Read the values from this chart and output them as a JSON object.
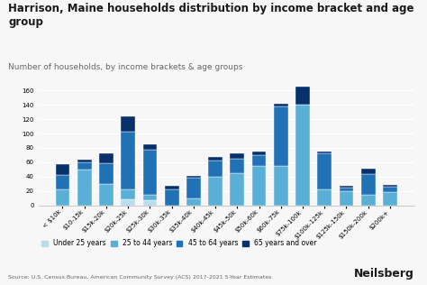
{
  "title": "Harrison, Maine households distribution by income bracket and age\ngroup",
  "subtitle": "Number of households, by income brackets & age groups",
  "source": "Source: U.S. Census Bureau, American Community Survey (ACS) 2017-2021 5-Year Estimates",
  "categories": [
    "< $10k",
    "$10-15k",
    "$15k-20k",
    "$20k-25k",
    "$25k-30k",
    "$30k-35k",
    "$35k-40k",
    "$40k-45k",
    "$45k-50k",
    "$50k-60k",
    "$60k-75k",
    "$75k-100k",
    "$100k-125k",
    "$125k-150k",
    "$150k-200k",
    "$200k+"
  ],
  "under25": [
    0,
    0,
    0,
    8,
    7,
    0,
    0,
    0,
    0,
    0,
    0,
    0,
    0,
    0,
    0,
    0
  ],
  "age25_44": [
    22,
    50,
    30,
    14,
    8,
    0,
    10,
    40,
    45,
    55,
    55,
    140,
    22,
    20,
    15,
    18
  ],
  "age45_64": [
    20,
    10,
    28,
    80,
    62,
    22,
    28,
    22,
    20,
    15,
    83,
    0,
    50,
    5,
    28,
    8
  ],
  "age65over": [
    15,
    3,
    14,
    22,
    8,
    5,
    3,
    5,
    8,
    5,
    3,
    25,
    3,
    2,
    8,
    2
  ],
  "colors": {
    "under25": "#b8dded",
    "age25_44": "#5aafd6",
    "age45_64": "#2171b5",
    "age65over": "#08306b"
  },
  "legend_labels": [
    "Under 25 years",
    "25 to 44 years",
    "45 to 64 years",
    "65 years and over"
  ],
  "ylim": [
    0,
    175
  ],
  "yticks": [
    0,
    20,
    40,
    60,
    80,
    100,
    120,
    140,
    160
  ],
  "background_color": "#f7f7f7",
  "title_fontsize": 8.5,
  "subtitle_fontsize": 6.5,
  "tick_fontsize": 5,
  "legend_fontsize": 5.5,
  "source_fontsize": 4.5
}
